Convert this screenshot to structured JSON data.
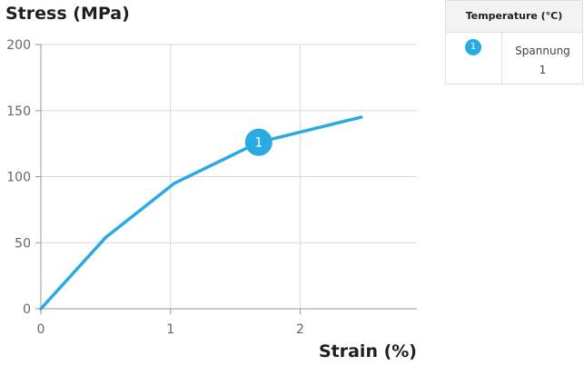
{
  "chart_data": {
    "type": "line",
    "ylabel": "Stress (MPa)",
    "xlabel": "Strain (%)",
    "xlim": [
      0,
      2.9
    ],
    "ylim": [
      0,
      200
    ],
    "x_ticks": [
      0,
      1,
      2
    ],
    "y_ticks": [
      0,
      50,
      100,
      150,
      200
    ],
    "grid": true,
    "series": [
      {
        "name": "Spannung\n1",
        "color": "#29aae2",
        "marker_label": "1",
        "marker_x": 1.68,
        "points": [
          {
            "x": 0,
            "y": 0
          },
          {
            "x": 0.5,
            "y": 54
          },
          {
            "x": 1.03,
            "y": 95
          },
          {
            "x": 1.68,
            "y": 126
          },
          {
            "x": 2.47,
            "y": 145
          }
        ]
      }
    ]
  },
  "legend": {
    "title": "Temperature (°C)",
    "badge": "1",
    "entry": "Spannung\n1",
    "badge_color": "#29aae2"
  }
}
